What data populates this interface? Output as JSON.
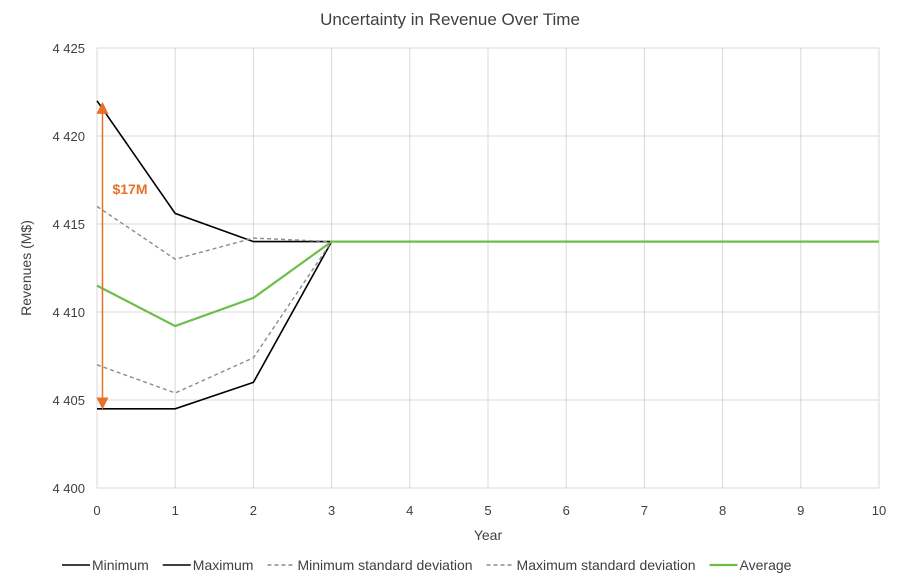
{
  "chart_data": {
    "type": "line",
    "title": "Uncertainty in Revenue Over Time",
    "xlabel": "Year",
    "ylabel": "Revenues (M$)",
    "x": [
      0,
      1,
      2,
      3,
      4,
      5,
      6,
      7,
      8,
      9,
      10
    ],
    "xlim": [
      0,
      10
    ],
    "ylim": [
      4400,
      4425
    ],
    "yticks": [
      4400,
      4405,
      4410,
      4415,
      4420,
      4425
    ],
    "ytick_labels": [
      "4 400",
      "4 405",
      "4 410",
      "4 415",
      "4 420",
      "4 425"
    ],
    "grid": true,
    "legend_position": "bottom",
    "series": [
      {
        "name": "Minimum",
        "color": "#000000",
        "dash": "solid",
        "values": [
          4404.5,
          4404.5,
          4406.0,
          4414.0,
          4414.0,
          4414.0,
          4414.0,
          4414.0,
          4414.0,
          4414.0,
          4414.0
        ]
      },
      {
        "name": "Maximum",
        "color": "#000000",
        "dash": "solid",
        "values": [
          4422.0,
          4415.6,
          4414.0,
          4414.0,
          4414.0,
          4414.0,
          4414.0,
          4414.0,
          4414.0,
          4414.0,
          4414.0
        ]
      },
      {
        "name": "Minimum standard deviation",
        "color": "#8c8c8c",
        "dash": "dashed",
        "values": [
          4407.0,
          4405.4,
          4407.4,
          4414.0,
          4414.0,
          4414.0,
          4414.0,
          4414.0,
          4414.0,
          4414.0,
          4414.0
        ]
      },
      {
        "name": "Maximum standard deviation",
        "color": "#8c8c8c",
        "dash": "dashed",
        "values": [
          4416.0,
          4413.0,
          4414.2,
          4414.0,
          4414.0,
          4414.0,
          4414.0,
          4414.0,
          4414.0,
          4414.0,
          4414.0
        ]
      },
      {
        "name": "Average",
        "color": "#6cbf4a",
        "dash": "solid",
        "values": [
          4411.5,
          4409.2,
          4410.8,
          4414.0,
          4414.0,
          4414.0,
          4414.0,
          4414.0,
          4414.0,
          4414.0,
          4414.0
        ]
      }
    ],
    "annotations": [
      {
        "text": "$17M",
        "color": "#e8712a",
        "x": 0.07,
        "y_from": 4404.8,
        "y_to": 4421.6,
        "label_y": 4417.0
      }
    ]
  }
}
